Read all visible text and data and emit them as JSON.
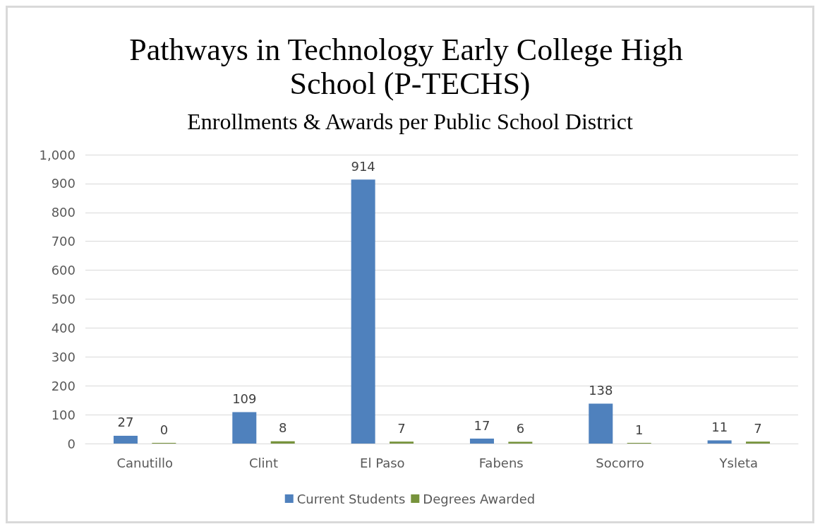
{
  "chart_data": {
    "type": "bar",
    "title": "Pathways in Technology Early College High School (P-TECHS)",
    "subtitle": "Enrollments & Awards per Public School District",
    "categories": [
      "Canutillo",
      "Clint",
      "El Paso",
      "Fabens",
      "Socorro",
      "Ysleta"
    ],
    "series": [
      {
        "name": "Current Students",
        "color": "#4f81bd",
        "values": [
          27,
          109,
          914,
          17,
          138,
          11
        ]
      },
      {
        "name": "Degrees Awarded",
        "color": "#77933c",
        "values": [
          0,
          8,
          7,
          6,
          1,
          7
        ]
      }
    ],
    "ylim": [
      0,
      1000
    ],
    "yticks": [
      0,
      100,
      200,
      300,
      400,
      500,
      600,
      700,
      800,
      900,
      {
        "value": 1000,
        "label": "1,000"
      }
    ],
    "grid": "y",
    "legend": "bottom",
    "data_labels": true
  }
}
